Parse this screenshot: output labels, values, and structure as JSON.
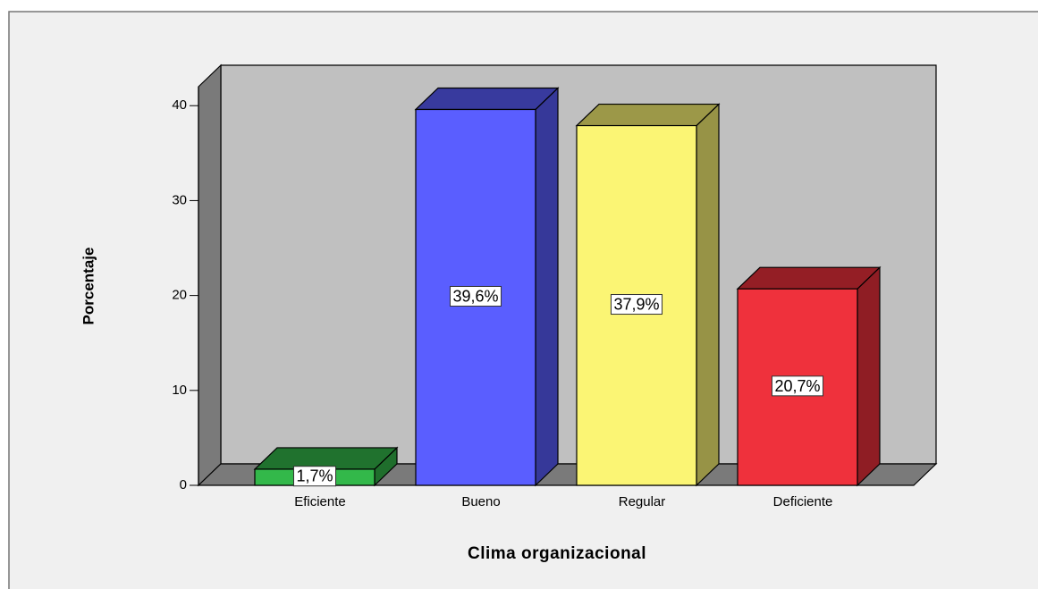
{
  "chart_data": {
    "type": "bar3d",
    "x_label": "Clima organizacional",
    "y_label": "Porcentaje",
    "categories": [
      "Eficiente",
      "Bueno",
      "Regular",
      "Deficiente"
    ],
    "values": [
      1.7,
      39.6,
      37.9,
      20.7
    ],
    "value_labels": [
      "1,7%",
      "39,6%",
      "37,9%",
      "20,7%"
    ],
    "colors": [
      "#33b84a",
      "#5a5eff",
      "#fbf574",
      "#ef313c"
    ],
    "ylim": [
      0,
      42
    ],
    "yticks": [
      0,
      10,
      20,
      30,
      40
    ]
  }
}
